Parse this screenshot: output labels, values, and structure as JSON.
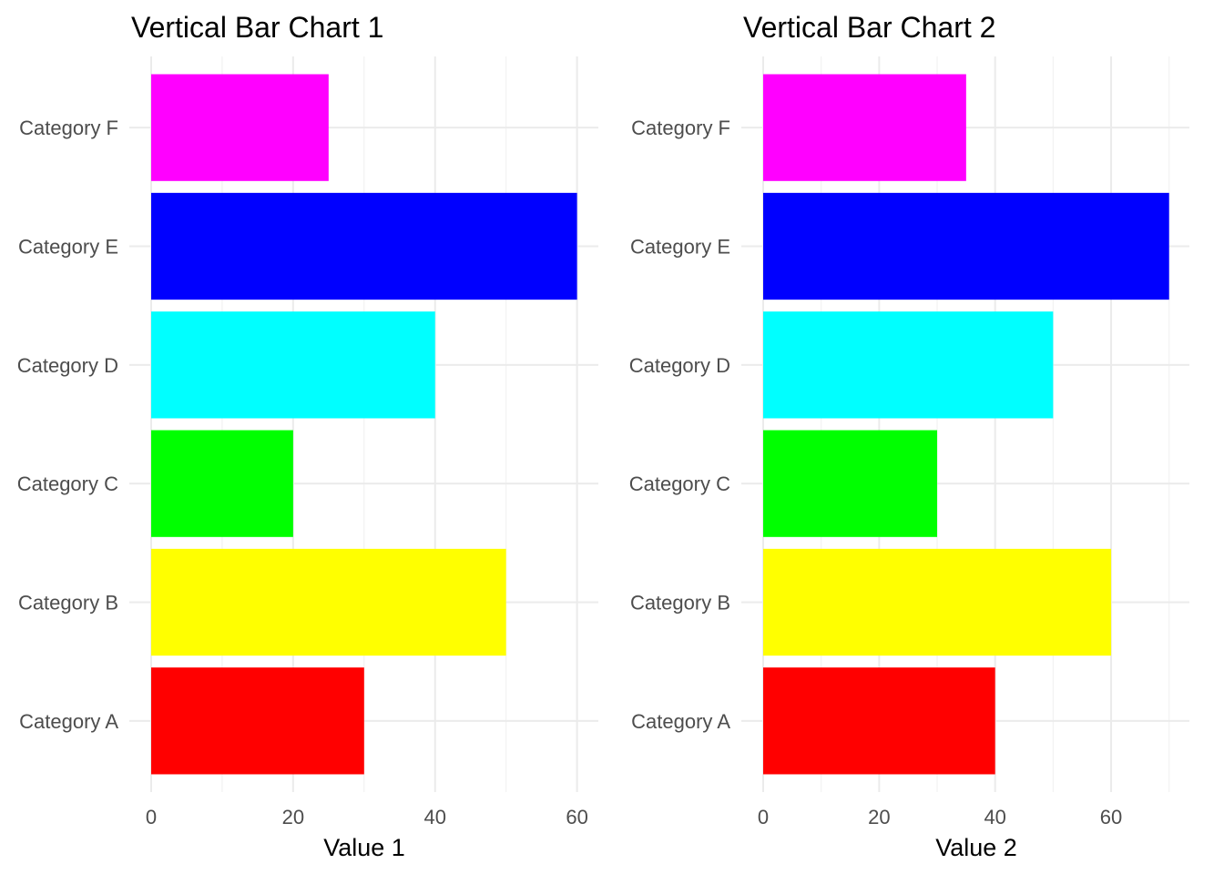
{
  "chart_data": [
    {
      "type": "bar",
      "orientation": "horizontal",
      "title": "Vertical Bar Chart 1",
      "xlabel": "Value 1",
      "ylabel": "",
      "categories": [
        "Category A",
        "Category B",
        "Category C",
        "Category D",
        "Category E",
        "Category F"
      ],
      "values": [
        30,
        50,
        20,
        40,
        60,
        25
      ],
      "colors": [
        "#ff0000",
        "#ffff00",
        "#00ff00",
        "#00ffff",
        "#0000ff",
        "#ff00ff"
      ],
      "xlim": [
        0,
        63
      ],
      "xticks": [
        0,
        20,
        40,
        60
      ],
      "xtick_labels": [
        "0",
        "20",
        "40",
        "60"
      ],
      "grid": true,
      "legend": "none"
    },
    {
      "type": "bar",
      "orientation": "horizontal",
      "title": "Vertical Bar Chart 2",
      "xlabel": "Value 2",
      "ylabel": "",
      "categories": [
        "Category A",
        "Category B",
        "Category C",
        "Category D",
        "Category E",
        "Category F"
      ],
      "values": [
        40,
        60,
        30,
        50,
        70,
        35
      ],
      "colors": [
        "#ff0000",
        "#ffff00",
        "#00ff00",
        "#00ffff",
        "#0000ff",
        "#ff00ff"
      ],
      "xlim": [
        0,
        73.5
      ],
      "xticks": [
        0,
        20,
        40,
        60
      ],
      "xtick_labels": [
        "0",
        "20",
        "40",
        "60"
      ],
      "grid": true,
      "legend": "none"
    }
  ]
}
